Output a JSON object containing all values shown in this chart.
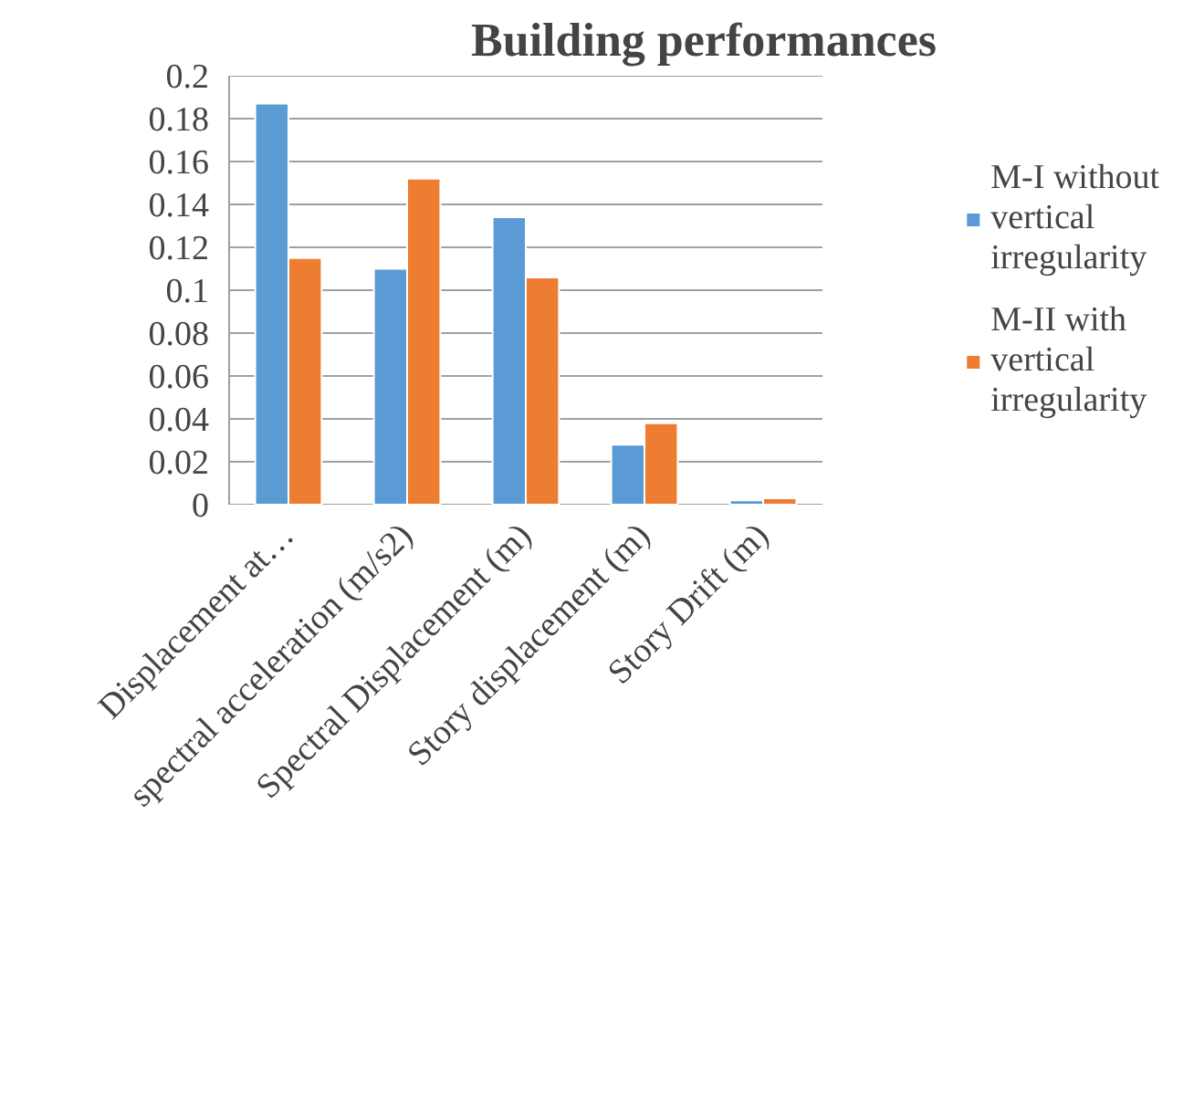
{
  "chart_data": {
    "type": "bar",
    "title": "Building performances",
    "categories": [
      "Displacement at…",
      "spectral acceleration (m/s2)",
      "Spectral Displacement (m)",
      "Story displacement (m)",
      "Story Drift (m)"
    ],
    "series": [
      {
        "name": "M-I without vertical irregularity",
        "color": "#5b9bd5",
        "values": [
          0.187,
          0.11,
          0.134,
          0.028,
          0.002
        ]
      },
      {
        "name": "M-II with vertical irregularity",
        "color": "#ed7d31",
        "values": [
          0.115,
          0.152,
          0.106,
          0.038,
          0.003
        ]
      }
    ],
    "ylim": [
      0,
      0.2
    ],
    "yticks": [
      0,
      0.02,
      0.04,
      0.06,
      0.08,
      0.1,
      0.12,
      0.14,
      0.16,
      0.18,
      0.2
    ],
    "grid": "y",
    "legend": "right"
  }
}
